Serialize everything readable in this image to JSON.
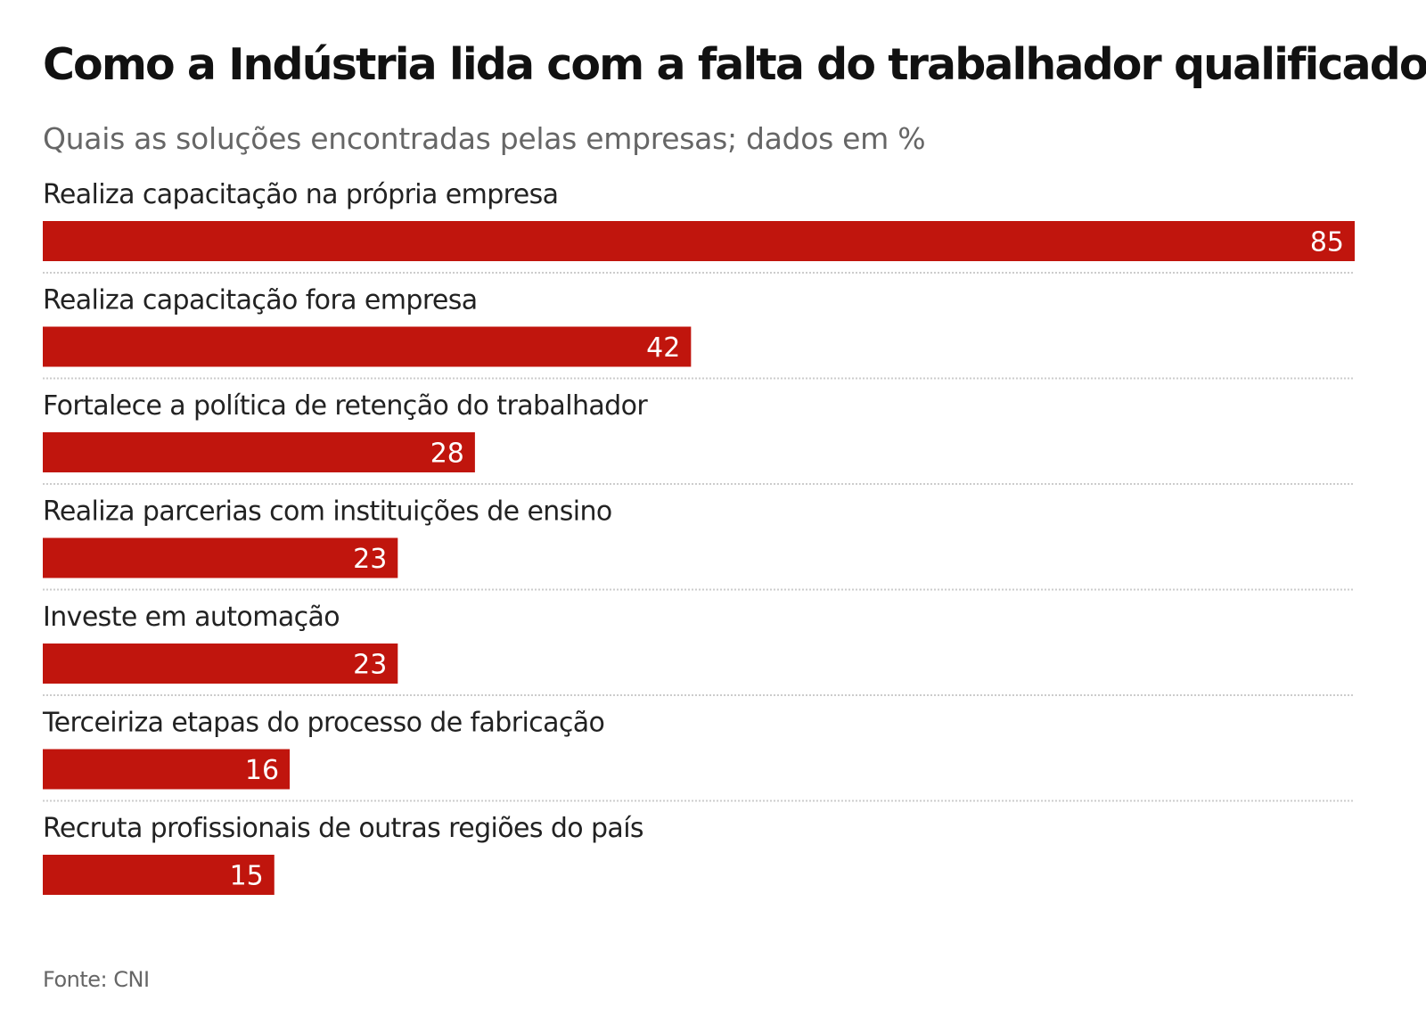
{
  "chart_data": {
    "type": "bar",
    "orientation": "horizontal",
    "title": "Como a Indústria lida com a falta do trabalhador qualificado",
    "subtitle": "Quais as soluções encontradas pelas empresas; dados em %",
    "categories": [
      "Realiza capacitação na própria empresa",
      "Realiza capacitação fora empresa",
      "Fortalece a política de retenção do trabalhador",
      "Realiza parcerias com instituições de ensino",
      "Investe em automação",
      "Terceiriza etapas do processo de fabricação",
      "Recruta profissionais de outras regiões do país"
    ],
    "values": [
      85,
      42,
      28,
      23,
      23,
      16,
      15
    ],
    "value_labels": [
      "85",
      "42",
      "28",
      "23",
      "23",
      "16",
      "15"
    ],
    "xlim": [
      0,
      85
    ],
    "data_labels_position": "inside-end",
    "grid": false,
    "bar_color": "#c0150d",
    "label_color": "#ffffff",
    "divider_color": "#cccccc"
  },
  "source": "Fonte: CNI"
}
